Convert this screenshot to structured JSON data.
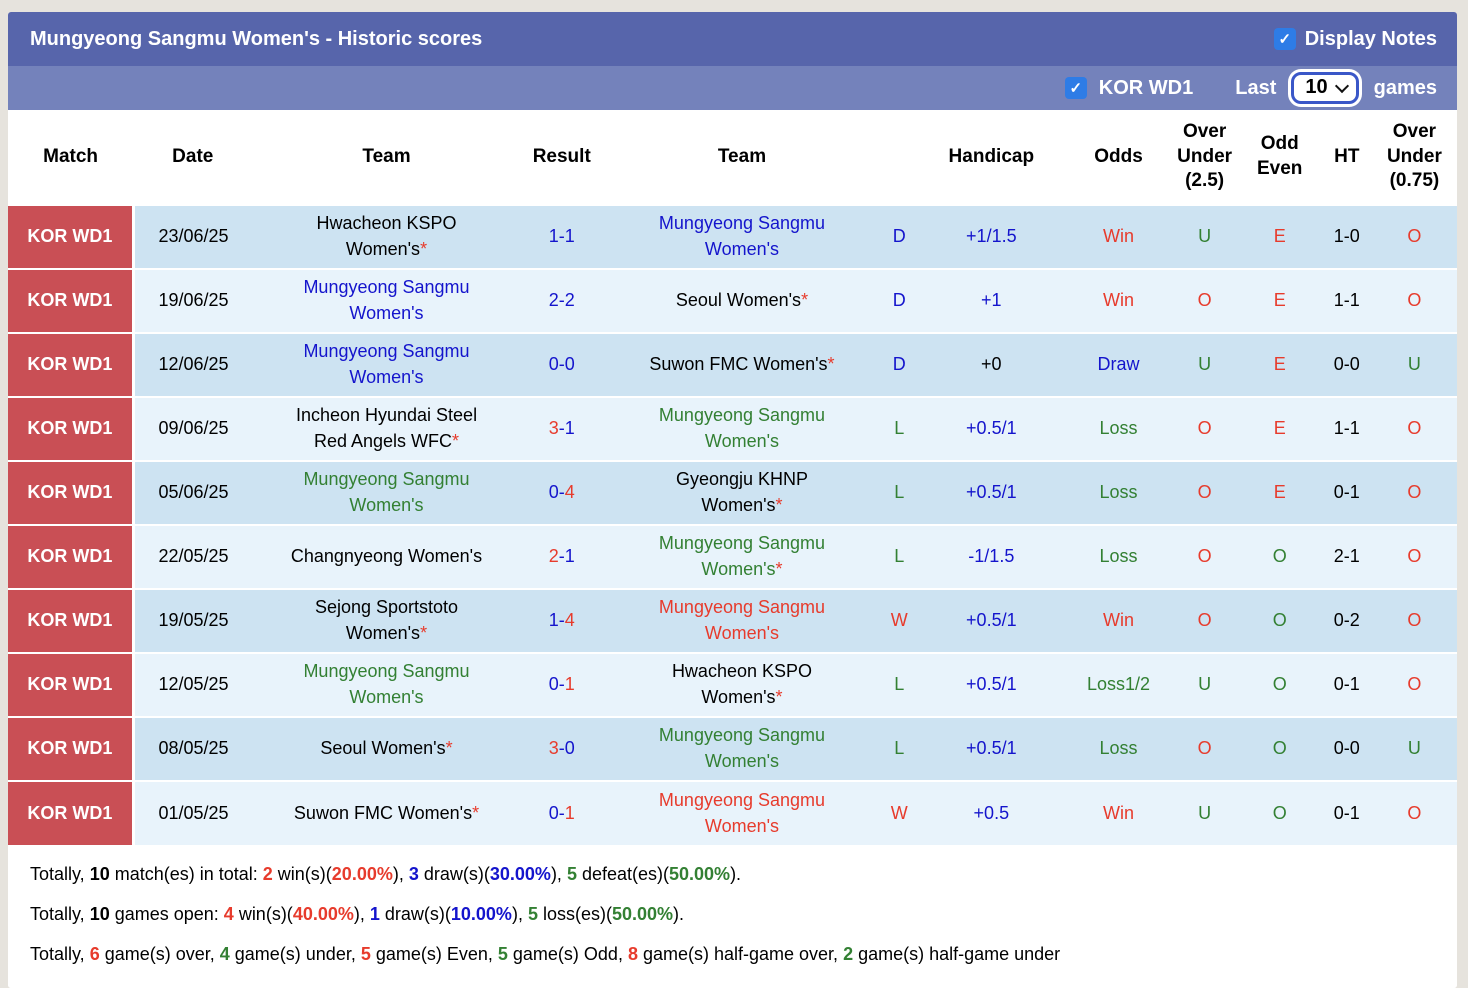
{
  "header": {
    "title": "Mungyeong Sangmu Women's - Historic scores",
    "display_notes_label": "Display Notes",
    "league_label": "KOR WD1",
    "last_label": "Last",
    "games_count": "10",
    "games_label": "games",
    "display_notes_checked": true,
    "league_checked": true
  },
  "colors": {
    "title_bar": "#5765ab",
    "sub_bar": "#7482bb",
    "match_badge_bg": "#c94f55",
    "row_odd": "#cde3f2",
    "row_even": "#e8f3fb",
    "checkbox_blue": "#2e7ce6",
    "text_red": "#e73b2c",
    "text_green": "#338033",
    "text_blue": "#1414cc",
    "text_black": "#000000"
  },
  "table": {
    "columns": [
      "Match",
      "Date",
      "Team",
      "Result",
      "Team",
      "Handicap",
      "Odds",
      "Over Under (2.5)",
      "Odd Even",
      "HT",
      "Over Under (0.75)"
    ],
    "rows": [
      {
        "league": "KOR WD1",
        "date": "23/06/25",
        "home": {
          "name": "Hwacheon KSPO\nWomen's",
          "star": true,
          "color": "black"
        },
        "score": {
          "h": "1",
          "a": "1",
          "hc": "blue",
          "ac": "blue"
        },
        "away": {
          "name": "Mungyeong Sangmu\nWomen's",
          "star": false,
          "color": "blue"
        },
        "result_letter": {
          "t": "D",
          "c": "blue"
        },
        "handicap": {
          "t": "+1/1.5",
          "c": "blue"
        },
        "odds": {
          "t": "Win",
          "c": "red"
        },
        "over_under_25": {
          "t": "U",
          "c": "green"
        },
        "odd_even": {
          "t": "E",
          "c": "red"
        },
        "ht": "1-0",
        "over_under_075": {
          "t": "O",
          "c": "red"
        }
      },
      {
        "league": "KOR WD1",
        "date": "19/06/25",
        "home": {
          "name": "Mungyeong Sangmu\nWomen's",
          "star": false,
          "color": "blue"
        },
        "score": {
          "h": "2",
          "a": "2",
          "hc": "blue",
          "ac": "blue"
        },
        "away": {
          "name": "Seoul Women's",
          "star": true,
          "color": "black"
        },
        "result_letter": {
          "t": "D",
          "c": "blue"
        },
        "handicap": {
          "t": "+1",
          "c": "blue"
        },
        "odds": {
          "t": "Win",
          "c": "red"
        },
        "over_under_25": {
          "t": "O",
          "c": "red"
        },
        "odd_even": {
          "t": "E",
          "c": "red"
        },
        "ht": "1-1",
        "over_under_075": {
          "t": "O",
          "c": "red"
        }
      },
      {
        "league": "KOR WD1",
        "date": "12/06/25",
        "home": {
          "name": "Mungyeong Sangmu\nWomen's",
          "star": false,
          "color": "blue"
        },
        "score": {
          "h": "0",
          "a": "0",
          "hc": "blue",
          "ac": "blue"
        },
        "away": {
          "name": "Suwon FMC Women's",
          "star": true,
          "color": "black"
        },
        "result_letter": {
          "t": "D",
          "c": "blue"
        },
        "handicap": {
          "t": "+0",
          "c": "black"
        },
        "odds": {
          "t": "Draw",
          "c": "blue"
        },
        "over_under_25": {
          "t": "U",
          "c": "green"
        },
        "odd_even": {
          "t": "E",
          "c": "red"
        },
        "ht": "0-0",
        "over_under_075": {
          "t": "U",
          "c": "green"
        }
      },
      {
        "league": "KOR WD1",
        "date": "09/06/25",
        "home": {
          "name": "Incheon Hyundai Steel\nRed Angels WFC",
          "star": true,
          "color": "black"
        },
        "score": {
          "h": "3",
          "a": "1",
          "hc": "red",
          "ac": "blue"
        },
        "away": {
          "name": "Mungyeong Sangmu\nWomen's",
          "star": false,
          "color": "green"
        },
        "result_letter": {
          "t": "L",
          "c": "green"
        },
        "handicap": {
          "t": "+0.5/1",
          "c": "blue"
        },
        "odds": {
          "t": "Loss",
          "c": "green"
        },
        "over_under_25": {
          "t": "O",
          "c": "red"
        },
        "odd_even": {
          "t": "E",
          "c": "red"
        },
        "ht": "1-1",
        "over_under_075": {
          "t": "O",
          "c": "red"
        }
      },
      {
        "league": "KOR WD1",
        "date": "05/06/25",
        "home": {
          "name": "Mungyeong Sangmu\nWomen's",
          "star": false,
          "color": "green"
        },
        "score": {
          "h": "0",
          "a": "4",
          "hc": "blue",
          "ac": "red"
        },
        "away": {
          "name": "Gyeongju KHNP\nWomen's",
          "star": true,
          "color": "black"
        },
        "result_letter": {
          "t": "L",
          "c": "green"
        },
        "handicap": {
          "t": "+0.5/1",
          "c": "blue"
        },
        "odds": {
          "t": "Loss",
          "c": "green"
        },
        "over_under_25": {
          "t": "O",
          "c": "red"
        },
        "odd_even": {
          "t": "E",
          "c": "red"
        },
        "ht": "0-1",
        "over_under_075": {
          "t": "O",
          "c": "red"
        }
      },
      {
        "league": "KOR WD1",
        "date": "22/05/25",
        "home": {
          "name": "Changnyeong Women's",
          "star": false,
          "color": "black"
        },
        "score": {
          "h": "2",
          "a": "1",
          "hc": "red",
          "ac": "blue"
        },
        "away": {
          "name": "Mungyeong Sangmu\nWomen's",
          "star": true,
          "color": "green"
        },
        "result_letter": {
          "t": "L",
          "c": "green"
        },
        "handicap": {
          "t": "-1/1.5",
          "c": "blue"
        },
        "odds": {
          "t": "Loss",
          "c": "green"
        },
        "over_under_25": {
          "t": "O",
          "c": "red"
        },
        "odd_even": {
          "t": "O",
          "c": "green"
        },
        "ht": "2-1",
        "over_under_075": {
          "t": "O",
          "c": "red"
        }
      },
      {
        "league": "KOR WD1",
        "date": "19/05/25",
        "home": {
          "name": "Sejong Sportstoto\nWomen's",
          "star": true,
          "color": "black"
        },
        "score": {
          "h": "1",
          "a": "4",
          "hc": "blue",
          "ac": "red"
        },
        "away": {
          "name": "Mungyeong Sangmu\nWomen's",
          "star": false,
          "color": "red"
        },
        "result_letter": {
          "t": "W",
          "c": "red"
        },
        "handicap": {
          "t": "+0.5/1",
          "c": "blue"
        },
        "odds": {
          "t": "Win",
          "c": "red"
        },
        "over_under_25": {
          "t": "O",
          "c": "red"
        },
        "odd_even": {
          "t": "O",
          "c": "green"
        },
        "ht": "0-2",
        "over_under_075": {
          "t": "O",
          "c": "red"
        }
      },
      {
        "league": "KOR WD1",
        "date": "12/05/25",
        "home": {
          "name": "Mungyeong Sangmu\nWomen's",
          "star": false,
          "color": "green"
        },
        "score": {
          "h": "0",
          "a": "1",
          "hc": "blue",
          "ac": "red"
        },
        "away": {
          "name": "Hwacheon KSPO\nWomen's",
          "star": true,
          "color": "black"
        },
        "result_letter": {
          "t": "L",
          "c": "green"
        },
        "handicap": {
          "t": "+0.5/1",
          "c": "blue"
        },
        "odds": {
          "t": "Loss1/2",
          "c": "green"
        },
        "over_under_25": {
          "t": "U",
          "c": "green"
        },
        "odd_even": {
          "t": "O",
          "c": "green"
        },
        "ht": "0-1",
        "over_under_075": {
          "t": "O",
          "c": "red"
        }
      },
      {
        "league": "KOR WD1",
        "date": "08/05/25",
        "home": {
          "name": "Seoul Women's",
          "star": true,
          "color": "black"
        },
        "score": {
          "h": "3",
          "a": "0",
          "hc": "red",
          "ac": "blue"
        },
        "away": {
          "name": "Mungyeong Sangmu\nWomen's",
          "star": false,
          "color": "green"
        },
        "result_letter": {
          "t": "L",
          "c": "green"
        },
        "handicap": {
          "t": "+0.5/1",
          "c": "blue"
        },
        "odds": {
          "t": "Loss",
          "c": "green"
        },
        "over_under_25": {
          "t": "O",
          "c": "red"
        },
        "odd_even": {
          "t": "O",
          "c": "green"
        },
        "ht": "0-0",
        "over_under_075": {
          "t": "U",
          "c": "green"
        }
      },
      {
        "league": "KOR WD1",
        "date": "01/05/25",
        "home": {
          "name": "Suwon FMC Women's",
          "star": true,
          "color": "black"
        },
        "score": {
          "h": "0",
          "a": "1",
          "hc": "blue",
          "ac": "red"
        },
        "away": {
          "name": "Mungyeong Sangmu\nWomen's",
          "star": false,
          "color": "red"
        },
        "result_letter": {
          "t": "W",
          "c": "red"
        },
        "handicap": {
          "t": "+0.5",
          "c": "blue"
        },
        "odds": {
          "t": "Win",
          "c": "red"
        },
        "over_under_25": {
          "t": "U",
          "c": "green"
        },
        "odd_even": {
          "t": "O",
          "c": "green"
        },
        "ht": "0-1",
        "over_under_075": {
          "t": "O",
          "c": "red"
        }
      }
    ]
  },
  "summary": {
    "lines": [
      {
        "segments": [
          [
            "Totally, ",
            "black",
            0
          ],
          [
            "10",
            "black",
            1
          ],
          [
            " match(es) in total: ",
            "black",
            0
          ],
          [
            "2",
            "red",
            1
          ],
          [
            " win(s)(",
            "black",
            0
          ],
          [
            "20.00%",
            "red",
            1
          ],
          [
            "), ",
            "black",
            0
          ],
          [
            "3",
            "blue",
            1
          ],
          [
            " draw(s)(",
            "black",
            0
          ],
          [
            "30.00%",
            "blue",
            1
          ],
          [
            "), ",
            "black",
            0
          ],
          [
            "5",
            "green",
            1
          ],
          [
            " defeat(es)(",
            "black",
            0
          ],
          [
            "50.00%",
            "green",
            1
          ],
          [
            ").",
            "black",
            0
          ]
        ]
      },
      {
        "segments": [
          [
            "Totally, ",
            "black",
            0
          ],
          [
            "10",
            "black",
            1
          ],
          [
            " games open: ",
            "black",
            0
          ],
          [
            "4",
            "red",
            1
          ],
          [
            " win(s)(",
            "black",
            0
          ],
          [
            "40.00%",
            "red",
            1
          ],
          [
            "), ",
            "black",
            0
          ],
          [
            "1",
            "blue",
            1
          ],
          [
            " draw(s)(",
            "black",
            0
          ],
          [
            "10.00%",
            "blue",
            1
          ],
          [
            "), ",
            "black",
            0
          ],
          [
            "5",
            "green",
            1
          ],
          [
            " loss(es)(",
            "black",
            0
          ],
          [
            "50.00%",
            "green",
            1
          ],
          [
            ").",
            "black",
            0
          ]
        ]
      },
      {
        "segments": [
          [
            "Totally, ",
            "black",
            0
          ],
          [
            "6",
            "red",
            1
          ],
          [
            " game(s) over, ",
            "black",
            0
          ],
          [
            "4",
            "green",
            1
          ],
          [
            " game(s) under, ",
            "black",
            0
          ],
          [
            "5",
            "red",
            1
          ],
          [
            " game(s) Even, ",
            "black",
            0
          ],
          [
            "5",
            "green",
            1
          ],
          [
            " game(s) Odd, ",
            "black",
            0
          ],
          [
            "8",
            "red",
            1
          ],
          [
            " game(s) half-game over, ",
            "black",
            0
          ],
          [
            "2",
            "green",
            1
          ],
          [
            " game(s) half-game under",
            "black",
            0
          ]
        ]
      }
    ]
  }
}
